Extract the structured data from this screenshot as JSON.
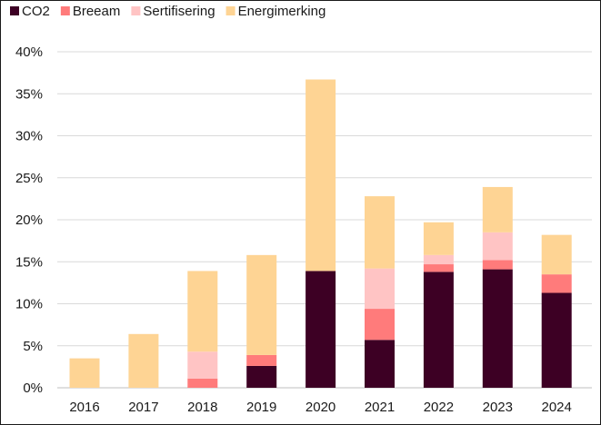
{
  "chart_data": {
    "type": "bar",
    "stacked": true,
    "title": "",
    "xlabel": "",
    "ylabel": "",
    "ylim": [
      0,
      0.4
    ],
    "yticks": [
      "0%",
      "5%",
      "10%",
      "15%",
      "20%",
      "25%",
      "30%",
      "35%",
      "40%"
    ],
    "grid": "horizontal",
    "legend_position": "top-left",
    "categories": [
      "2016",
      "2017",
      "2018",
      "2019",
      "2020",
      "2021",
      "2022",
      "2023",
      "2024"
    ],
    "series": [
      {
        "name": "CO2",
        "color": "#3d0024",
        "values": [
          0.0,
          0.0,
          0.0,
          0.026,
          0.139,
          0.057,
          0.138,
          0.141,
          0.113
        ]
      },
      {
        "name": "Breeam",
        "color": "#ff7b7b",
        "values": [
          0.0,
          0.0,
          0.011,
          0.013,
          0.0,
          0.037,
          0.009,
          0.011,
          0.022
        ]
      },
      {
        "name": "Sertifisering",
        "color": "#ffc4c4",
        "values": [
          0.0,
          0.0,
          0.032,
          0.0,
          0.0,
          0.048,
          0.011,
          0.033,
          0.0
        ]
      },
      {
        "name": "Energimerking",
        "color": "#fed494",
        "values": [
          0.035,
          0.064,
          0.096,
          0.119,
          0.228,
          0.086,
          0.039,
          0.054,
          0.047
        ]
      }
    ]
  }
}
